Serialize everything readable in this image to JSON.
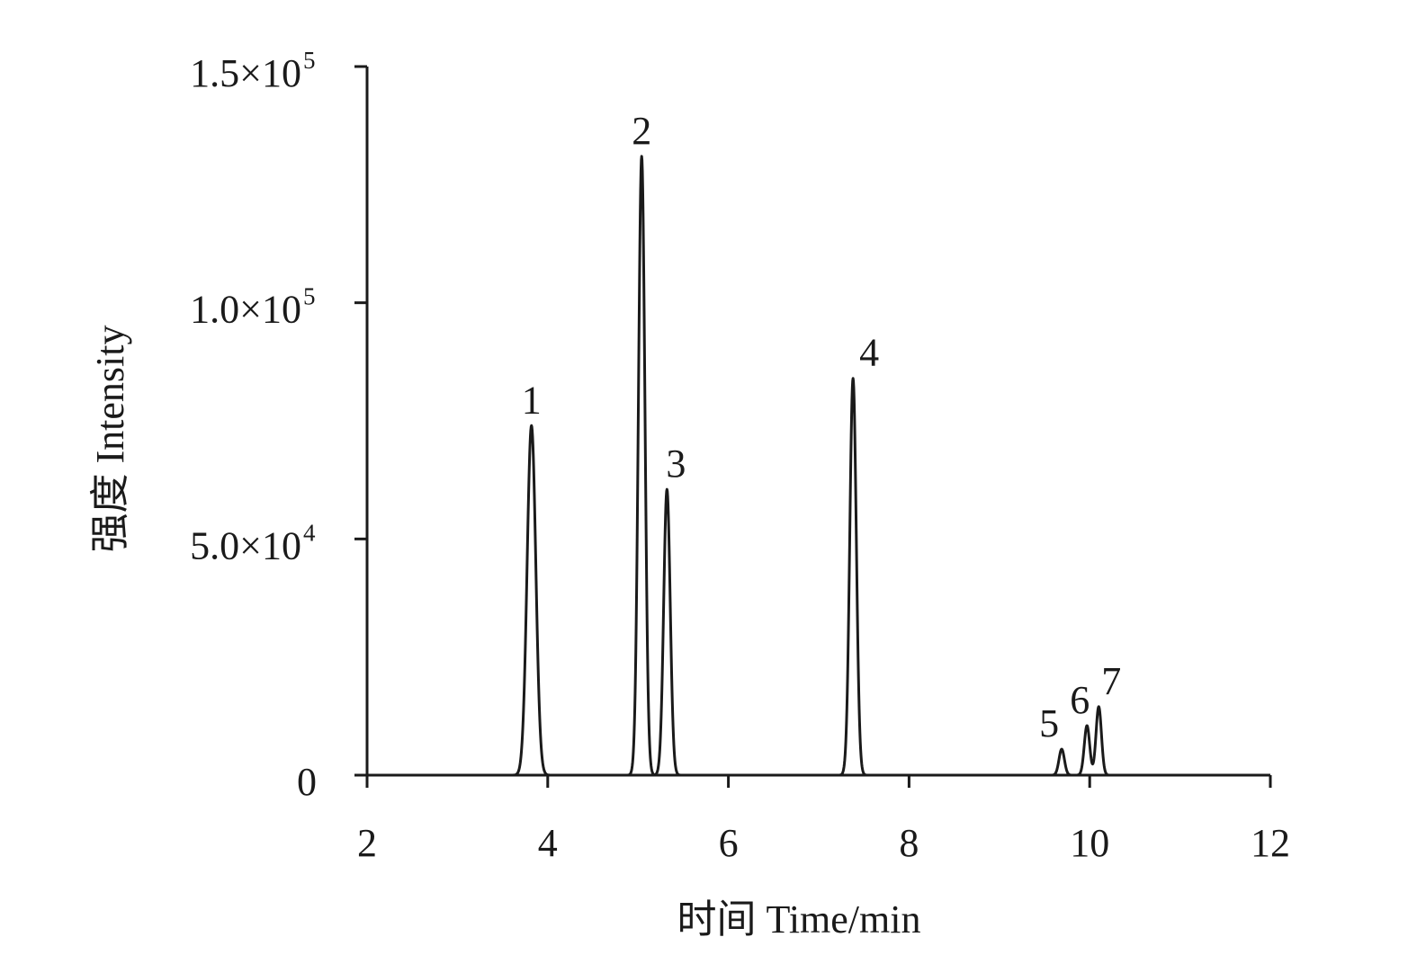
{
  "chart_data": {
    "type": "line",
    "title": "",
    "xlabel": "时间 Time/min",
    "ylabel": "强度 Intensity",
    "xlim": [
      2,
      12
    ],
    "ylim": [
      0,
      150000
    ],
    "x_ticks": [
      2,
      4,
      6,
      8,
      10,
      12
    ],
    "y_ticks": [
      {
        "value": 0,
        "mantissa": "0",
        "exponent": ""
      },
      {
        "value": 50000,
        "mantissa": "5.0×10",
        "exponent": "4"
      },
      {
        "value": 100000,
        "mantissa": "1.0×10",
        "exponent": "5"
      },
      {
        "value": 150000,
        "mantissa": "1.5×10",
        "exponent": "5"
      }
    ],
    "grid": false,
    "legend": "none",
    "series": [
      {
        "peaks": [
          {
            "label": "1",
            "rt": 3.82,
            "height": 74000
          },
          {
            "label": "2",
            "rt": 5.04,
            "height": 131000
          },
          {
            "label": "3",
            "rt": 5.32,
            "height": 60500
          },
          {
            "label": "4",
            "rt": 7.38,
            "height": 84000
          },
          {
            "label": "5",
            "rt": 9.69,
            "height": 5500
          },
          {
            "label": "6",
            "rt": 9.97,
            "height": 10500
          },
          {
            "label": "7",
            "rt": 10.1,
            "height": 14500
          }
        ]
      }
    ]
  }
}
